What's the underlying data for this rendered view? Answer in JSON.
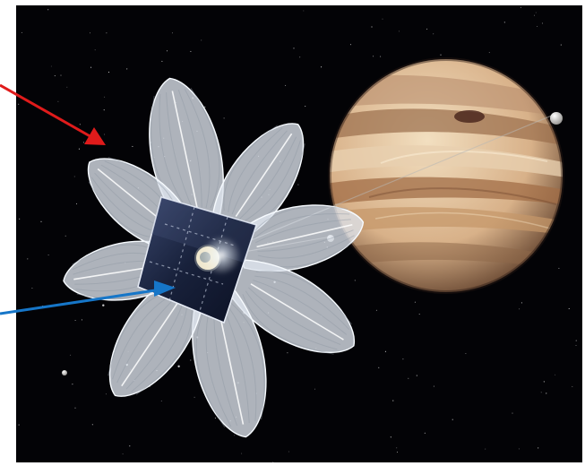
{
  "scene": {
    "colors": {
      "page_background": "#ffffff",
      "space_background": "#030306",
      "sail_membrane": "#dfe5ee",
      "sail_shadow": "#8d96a3",
      "spacecraft_panel": "#1c2746",
      "jupiter_cream": "#e7cfae",
      "jupiter_band_dark": "#9a6d4b",
      "jupiter_band_mid": "#c9a077",
      "moon": "#e8e4dd",
      "star": "#ffffff"
    },
    "annotations": [
      {
        "id": "sail-annotation",
        "color": "#e01b1b",
        "icon": "red-arrow-icon"
      },
      {
        "id": "spacecraft-annotation",
        "color": "#1676c8",
        "icon": "blue-arrow-icon"
      }
    ]
  }
}
